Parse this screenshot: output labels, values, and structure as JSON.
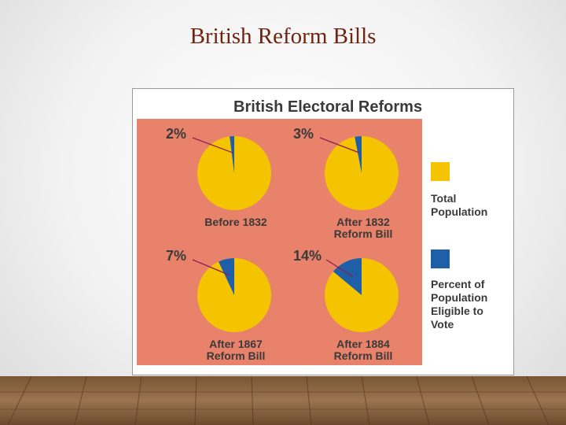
{
  "slide": {
    "title": "British Reform Bills"
  },
  "colors": {
    "panel": "#e8826a",
    "total": "#f5c400",
    "eligible": "#1f5fa8",
    "pointer": "#8b1f4f",
    "title_text": "#6e2410"
  },
  "chart_data": {
    "type": "pie",
    "title": "British Electoral Reforms",
    "legend": [
      {
        "key": "total",
        "lines": [
          "Total",
          "Population"
        ]
      },
      {
        "key": "eligible",
        "lines": [
          "Percent of",
          "Population",
          "Eligible to",
          "Vote"
        ]
      }
    ],
    "legend_placement": "right",
    "pies": [
      {
        "label": "2%",
        "value": 2,
        "caption_lines": [
          "Before 1832"
        ]
      },
      {
        "label": "3%",
        "value": 3,
        "caption_lines": [
          "After 1832",
          "Reform Bill"
        ]
      },
      {
        "label": "7%",
        "value": 7,
        "caption_lines": [
          "After 1867",
          "Reform Bill"
        ]
      },
      {
        "label": "14%",
        "value": 14,
        "caption_lines": [
          "After 1884",
          "Reform Bill"
        ]
      }
    ]
  }
}
